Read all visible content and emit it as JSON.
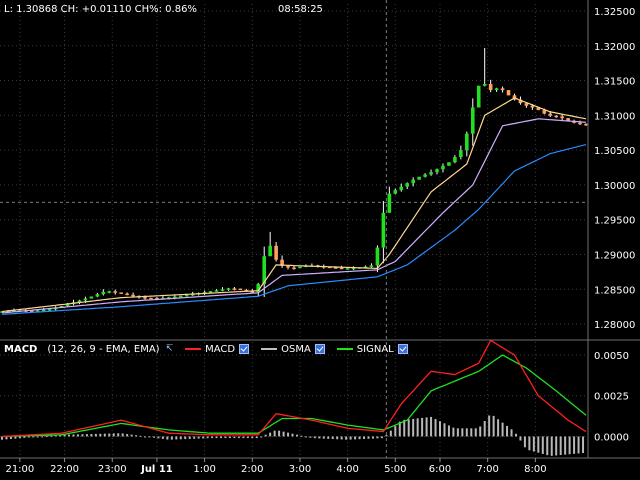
{
  "header": {
    "quote": "L: 1.30868  CH: +0.01110  CH%: 0.86%",
    "time": "08:58:25"
  },
  "price_axis": [
    "1.32500",
    "1.32000",
    "1.31500",
    "1.31000",
    "1.30500",
    "1.30000",
    "1.29500",
    "1.29000",
    "1.28500",
    "1.28000"
  ],
  "macd_axis": [
    "0.0050",
    "0.0025",
    "0.0000"
  ],
  "time_axis": [
    "21:00",
    "22:00",
    "23:00",
    "Jul 11",
    "1:00",
    "2:00",
    "3:00",
    "4:00",
    "5:00",
    "6:00",
    "7:00",
    "8:00"
  ],
  "legend": {
    "title": "MACD",
    "params": "(12, 26, 9 - EMA, EMA)",
    "items": [
      {
        "label": "MACD",
        "color": "#ff2020"
      },
      {
        "label": "OSMA",
        "color": "#c0c0c0"
      },
      {
        "label": "SIGNAL",
        "color": "#20e020"
      }
    ]
  },
  "colors": {
    "up_candle": "#20e020",
    "down_candle": "#ffa060",
    "ma_fast": "#ffd890",
    "ma_mid": "#d0b0ff",
    "ma_slow": "#2a8cff",
    "grid": "#3a3a3a",
    "crosshair": "#7a7a7a"
  },
  "chart_data": [
    {
      "type": "candlestick",
      "title": "",
      "x_ticks": [
        "21:00",
        "22:00",
        "23:00",
        "Jul 11",
        "1:00",
        "2:00",
        "3:00",
        "4:00",
        "5:00",
        "6:00",
        "7:00",
        "8:00"
      ],
      "ylim": [
        1.278,
        1.326
      ],
      "last": 1.30868,
      "close_path": [
        [
          0,
          1.2818
        ],
        [
          3,
          1.282
        ],
        [
          6,
          1.2819
        ],
        [
          9,
          1.2822
        ],
        [
          12,
          1.283
        ],
        [
          15,
          1.2838
        ],
        [
          18,
          1.2848
        ],
        [
          21,
          1.2843
        ],
        [
          24,
          1.2838
        ],
        [
          27,
          1.2837
        ],
        [
          30,
          1.284
        ],
        [
          33,
          1.2844
        ],
        [
          36,
          1.2848
        ],
        [
          39,
          1.2852
        ],
        [
          41,
          1.2848
        ],
        [
          43,
          1.2845
        ],
        [
          44,
          1.287
        ],
        [
          45,
          1.2925
        ],
        [
          46,
          1.29
        ],
        [
          47,
          1.2885
        ],
        [
          49,
          1.288
        ],
        [
          52,
          1.2885
        ],
        [
          55,
          1.2882
        ],
        [
          58,
          1.288
        ],
        [
          61,
          1.2882
        ],
        [
          63,
          1.2885
        ],
        [
          64,
          1.2935
        ],
        [
          65,
          1.2985
        ],
        [
          67,
          1.2995
        ],
        [
          70,
          1.301
        ],
        [
          73,
          1.302
        ],
        [
          76,
          1.3035
        ],
        [
          78,
          1.3055
        ],
        [
          80,
          1.313
        ],
        [
          81,
          1.3155
        ],
        [
          82,
          1.3135
        ],
        [
          84,
          1.314
        ],
        [
          86,
          1.3125
        ],
        [
          88,
          1.3115
        ],
        [
          90,
          1.311
        ],
        [
          92,
          1.31
        ],
        [
          94,
          1.3098
        ],
        [
          96,
          1.309
        ],
        [
          98,
          1.3087
        ]
      ],
      "ma_fast": [
        [
          0,
          1.2818
        ],
        [
          20,
          1.2838
        ],
        [
          43,
          1.2848
        ],
        [
          46,
          1.2885
        ],
        [
          63,
          1.288
        ],
        [
          65,
          1.29
        ],
        [
          72,
          1.299
        ],
        [
          78,
          1.303
        ],
        [
          81,
          1.31
        ],
        [
          86,
          1.3125
        ],
        [
          92,
          1.3105
        ],
        [
          98,
          1.3095
        ]
      ],
      "ma_mid": [
        [
          0,
          1.2816
        ],
        [
          20,
          1.2832
        ],
        [
          43,
          1.2845
        ],
        [
          47,
          1.287
        ],
        [
          63,
          1.2878
        ],
        [
          66,
          1.289
        ],
        [
          74,
          1.296
        ],
        [
          79,
          1.3
        ],
        [
          84,
          1.3085
        ],
        [
          90,
          1.3095
        ],
        [
          98,
          1.309
        ]
      ],
      "ma_slow": [
        [
          0,
          1.2814
        ],
        [
          20,
          1.2825
        ],
        [
          43,
          1.284
        ],
        [
          48,
          1.2855
        ],
        [
          63,
          1.2868
        ],
        [
          68,
          1.2885
        ],
        [
          76,
          1.2935
        ],
        [
          80,
          1.2965
        ],
        [
          86,
          1.302
        ],
        [
          92,
          1.3045
        ],
        [
          98,
          1.3058
        ]
      ]
    },
    {
      "type": "line",
      "title": "MACD",
      "ylim": [
        -0.0012,
        0.0058
      ],
      "series": [
        {
          "name": "MACD",
          "values": [
            [
              0,
              0.0
            ],
            [
              10,
              0.0002
            ],
            [
              20,
              0.001
            ],
            [
              28,
              0.0002
            ],
            [
              35,
              0.0001
            ],
            [
              43,
              0.0001
            ],
            [
              46,
              0.0014
            ],
            [
              52,
              0.001
            ],
            [
              58,
              0.0005
            ],
            [
              64,
              0.0003
            ],
            [
              67,
              0.002
            ],
            [
              72,
              0.004
            ],
            [
              76,
              0.0038
            ],
            [
              80,
              0.0045
            ],
            [
              82,
              0.0059
            ],
            [
              86,
              0.005
            ],
            [
              90,
              0.0025
            ],
            [
              95,
              0.001
            ],
            [
              98,
              0.0003
            ]
          ]
        },
        {
          "name": "SIGNAL",
          "values": [
            [
              0,
              0.0
            ],
            [
              10,
              0.0001
            ],
            [
              20,
              0.0008
            ],
            [
              28,
              0.0004
            ],
            [
              35,
              0.0002
            ],
            [
              43,
              0.0002
            ],
            [
              47,
              0.0011
            ],
            [
              52,
              0.0011
            ],
            [
              58,
              0.0007
            ],
            [
              64,
              0.0004
            ],
            [
              68,
              0.001
            ],
            [
              72,
              0.0028
            ],
            [
              76,
              0.0034
            ],
            [
              80,
              0.004
            ],
            [
              84,
              0.005
            ],
            [
              88,
              0.0042
            ],
            [
              93,
              0.0028
            ],
            [
              98,
              0.0013
            ]
          ]
        }
      ],
      "osma": [
        [
          0,
          -0.0002
        ],
        [
          10,
          0.0001
        ],
        [
          20,
          0.0002
        ],
        [
          28,
          -0.0002
        ],
        [
          35,
          -0.0001
        ],
        [
          43,
          -0.0001
        ],
        [
          46,
          0.0004
        ],
        [
          52,
          -0.0001
        ],
        [
          58,
          -0.0002
        ],
        [
          64,
          -0.0001
        ],
        [
          67,
          0.001
        ],
        [
          72,
          0.0012
        ],
        [
          76,
          0.0005
        ],
        [
          80,
          0.0005
        ],
        [
          82,
          0.0014
        ],
        [
          86,
          0.0003
        ],
        [
          88,
          -0.0008
        ],
        [
          92,
          -0.0012
        ],
        [
          98,
          -0.001
        ]
      ]
    }
  ]
}
